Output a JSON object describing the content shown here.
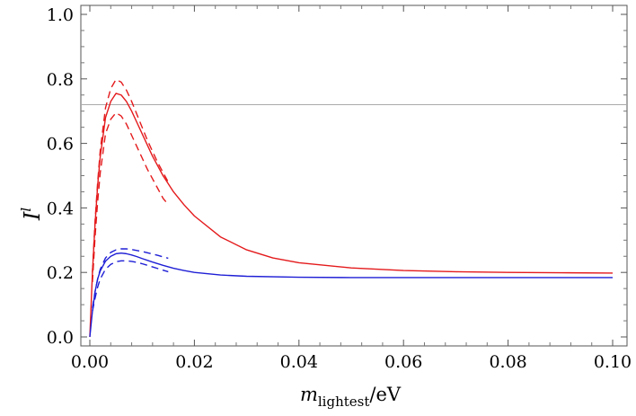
{
  "chart_data": {
    "type": "line",
    "title": "",
    "xlabel": "m_lightest/eV",
    "xlabel_parts": {
      "main": "m",
      "sub": "lightest",
      "tail": "/eV"
    },
    "ylabel": "I^l",
    "ylabel_parts": {
      "main": "I",
      "sup": "l"
    },
    "xlim": [
      0.0,
      0.1
    ],
    "ylim": [
      0.0,
      1.0
    ],
    "x_ticks": [
      "0.00",
      "0.02",
      "0.04",
      "0.06",
      "0.08",
      "0.10"
    ],
    "y_ticks": [
      "0.0",
      "0.2",
      "0.4",
      "0.6",
      "0.8",
      "1.0"
    ],
    "grid": false,
    "reference_line": {
      "y": 0.72,
      "color": "#aaaaaa"
    },
    "series": [
      {
        "color": "#e41a1c",
        "dash": "solid",
        "x": [
          0.0,
          0.0005,
          0.001,
          0.0015,
          0.002,
          0.003,
          0.004,
          0.005,
          0.006,
          0.007,
          0.008,
          0.009,
          0.01,
          0.012,
          0.014,
          0.016,
          0.018,
          0.02,
          0.025,
          0.03,
          0.035,
          0.04,
          0.05,
          0.06,
          0.07,
          0.08,
          0.09,
          0.1
        ],
        "y": [
          0.0,
          0.2,
          0.35,
          0.47,
          0.56,
          0.68,
          0.73,
          0.755,
          0.75,
          0.73,
          0.7,
          0.665,
          0.63,
          0.56,
          0.5,
          0.45,
          0.41,
          0.375,
          0.31,
          0.27,
          0.245,
          0.23,
          0.214,
          0.206,
          0.202,
          0.2,
          0.199,
          0.198
        ]
      },
      {
        "color": "#e41a1c",
        "dash": "dashed",
        "x": [
          0.0005,
          0.001,
          0.0015,
          0.002,
          0.003,
          0.004,
          0.005,
          0.006,
          0.007,
          0.008,
          0.009,
          0.01,
          0.011,
          0.012,
          0.013,
          0.014,
          0.015
        ],
        "y": [
          0.2,
          0.36,
          0.48,
          0.58,
          0.71,
          0.77,
          0.798,
          0.79,
          0.765,
          0.73,
          0.69,
          0.65,
          0.61,
          0.575,
          0.54,
          0.51,
          0.48
        ]
      },
      {
        "color": "#e41a1c",
        "dash": "dashed",
        "x": [
          0.0005,
          0.001,
          0.0015,
          0.002,
          0.003,
          0.004,
          0.005,
          0.006,
          0.007,
          0.008,
          0.009,
          0.01,
          0.011,
          0.012,
          0.013,
          0.014,
          0.015
        ],
        "y": [
          0.17,
          0.31,
          0.42,
          0.51,
          0.63,
          0.675,
          0.695,
          0.685,
          0.66,
          0.625,
          0.59,
          0.555,
          0.52,
          0.49,
          0.46,
          0.43,
          0.41
        ]
      },
      {
        "color": "#1f1fd6",
        "dash": "solid",
        "x": [
          0.0,
          0.0005,
          0.001,
          0.0015,
          0.002,
          0.003,
          0.004,
          0.005,
          0.006,
          0.007,
          0.008,
          0.009,
          0.01,
          0.012,
          0.014,
          0.016,
          0.018,
          0.02,
          0.025,
          0.03,
          0.04,
          0.05,
          0.06,
          0.07,
          0.08,
          0.09,
          0.1
        ],
        "y": [
          0.0,
          0.08,
          0.14,
          0.18,
          0.205,
          0.235,
          0.25,
          0.258,
          0.26,
          0.258,
          0.254,
          0.249,
          0.243,
          0.232,
          0.222,
          0.213,
          0.206,
          0.2,
          0.192,
          0.188,
          0.185,
          0.184,
          0.184,
          0.184,
          0.184,
          0.184,
          0.184
        ]
      },
      {
        "color": "#1f1fd6",
        "dash": "dashed",
        "x": [
          0.0005,
          0.001,
          0.0015,
          0.002,
          0.003,
          0.004,
          0.005,
          0.006,
          0.007,
          0.008,
          0.009,
          0.01,
          0.011,
          0.012,
          0.013,
          0.014,
          0.015
        ],
        "y": [
          0.09,
          0.14,
          0.18,
          0.21,
          0.245,
          0.262,
          0.27,
          0.273,
          0.273,
          0.271,
          0.268,
          0.265,
          0.261,
          0.257,
          0.253,
          0.248,
          0.244
        ]
      },
      {
        "color": "#1f1fd6",
        "dash": "dashed",
        "x": [
          0.0005,
          0.001,
          0.0015,
          0.002,
          0.003,
          0.004,
          0.005,
          0.006,
          0.007,
          0.008,
          0.009,
          0.01,
          0.011,
          0.012,
          0.013,
          0.014,
          0.015
        ],
        "y": [
          0.08,
          0.12,
          0.155,
          0.18,
          0.21,
          0.225,
          0.233,
          0.236,
          0.236,
          0.234,
          0.231,
          0.227,
          0.222,
          0.217,
          0.212,
          0.207,
          0.202
        ]
      }
    ]
  }
}
